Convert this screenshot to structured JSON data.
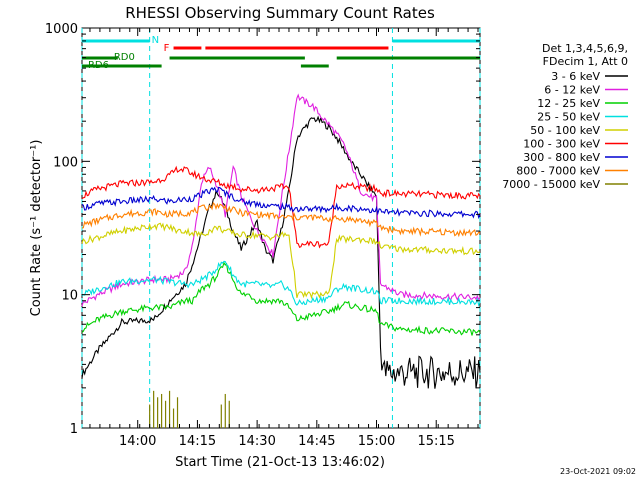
{
  "chart_data": {
    "type": "line",
    "title": "RHESSI Observing Summary Count Rates",
    "xlabel": "Start Time (21-Oct-13 13:46:02)",
    "ylabel": "Count Rate (s⁻¹ detector⁻¹)",
    "ylog": true,
    "ylim": [
      1,
      1000
    ],
    "xlim_minutes": [
      0,
      100
    ],
    "x_ticks": [
      {
        "label": "14:00",
        "min": 14
      },
      {
        "label": "14:15",
        "min": 29
      },
      {
        "label": "14:30",
        "min": 44
      },
      {
        "label": "14:45",
        "min": 59
      },
      {
        "label": "15:00",
        "min": 74
      },
      {
        "label": "15:15",
        "min": 89
      }
    ],
    "y_ticks": [
      {
        "label": "1",
        "value": 1
      },
      {
        "label": "10",
        "value": 10
      },
      {
        "label": "100",
        "value": 100
      },
      {
        "label": "1000",
        "value": 1000
      }
    ],
    "legend_header": [
      "Det 1,3,4,5,6,9,",
      "FDecim 1, Att 0"
    ],
    "legend_position": "top-right",
    "timestamp": "23-Oct-2021 09:02",
    "series": [
      {
        "name": "3 - 6 keV",
        "color": "#000000",
        "points": [
          [
            0,
            2.5
          ],
          [
            4,
            3.8
          ],
          [
            10,
            6.2
          ],
          [
            18,
            6.5
          ],
          [
            22,
            9
          ],
          [
            26,
            12
          ],
          [
            28,
            18
          ],
          [
            30,
            28
          ],
          [
            32,
            45
          ],
          [
            34,
            60
          ],
          [
            36,
            45
          ],
          [
            38,
            30
          ],
          [
            40,
            22
          ],
          [
            42,
            28
          ],
          [
            44,
            35
          ],
          [
            46,
            22
          ],
          [
            48,
            18
          ],
          [
            50,
            30
          ],
          [
            52,
            60
          ],
          [
            54,
            150
          ],
          [
            56,
            180
          ],
          [
            58,
            210
          ],
          [
            60,
            200
          ],
          [
            62,
            180
          ],
          [
            64,
            150
          ],
          [
            66,
            120
          ],
          [
            68,
            95
          ],
          [
            70,
            80
          ],
          [
            72,
            65
          ],
          [
            74,
            55
          ],
          [
            75,
            4
          ],
          [
            76,
            2.6
          ],
          [
            80,
            2.6
          ],
          [
            100,
            2.6
          ]
        ]
      },
      {
        "name": "6 - 12 keV",
        "color": "#e020e0",
        "points": [
          [
            0,
            8.5
          ],
          [
            4,
            10
          ],
          [
            10,
            12
          ],
          [
            18,
            13
          ],
          [
            22,
            13
          ],
          [
            26,
            15
          ],
          [
            28,
            25
          ],
          [
            30,
            70
          ],
          [
            32,
            90
          ],
          [
            34,
            65
          ],
          [
            36,
            40
          ],
          [
            38,
            90
          ],
          [
            40,
            55
          ],
          [
            42,
            40
          ],
          [
            44,
            30
          ],
          [
            46,
            25
          ],
          [
            48,
            20
          ],
          [
            50,
            50
          ],
          [
            52,
            120
          ],
          [
            54,
            310
          ],
          [
            56,
            280
          ],
          [
            58,
            260
          ],
          [
            60,
            220
          ],
          [
            62,
            190
          ],
          [
            64,
            160
          ],
          [
            66,
            130
          ],
          [
            68,
            90
          ],
          [
            70,
            60
          ],
          [
            72,
            55
          ],
          [
            74,
            52
          ],
          [
            75,
            12
          ],
          [
            80,
            10
          ],
          [
            100,
            9.5
          ]
        ]
      },
      {
        "name": "12 - 25 keV",
        "color": "#00d000",
        "points": [
          [
            0,
            5.5
          ],
          [
            4,
            6.5
          ],
          [
            10,
            7.5
          ],
          [
            18,
            8
          ],
          [
            22,
            8
          ],
          [
            26,
            9
          ],
          [
            28,
            9
          ],
          [
            30,
            11
          ],
          [
            32,
            12
          ],
          [
            34,
            14
          ],
          [
            36,
            17
          ],
          [
            38,
            13
          ],
          [
            40,
            10
          ],
          [
            42,
            10
          ],
          [
            44,
            9
          ],
          [
            46,
            9
          ],
          [
            48,
            9
          ],
          [
            50,
            9
          ],
          [
            52,
            8
          ],
          [
            54,
            6.5
          ],
          [
            58,
            7
          ],
          [
            62,
            7.5
          ],
          [
            64,
            8
          ],
          [
            66,
            8.5
          ],
          [
            70,
            8
          ],
          [
            74,
            7.5
          ],
          [
            75,
            6
          ],
          [
            80,
            5.5
          ],
          [
            100,
            5.2
          ]
        ]
      },
      {
        "name": "25 - 50 keV",
        "color": "#00e0e0",
        "points": [
          [
            0,
            10
          ],
          [
            4,
            11
          ],
          [
            10,
            12.5
          ],
          [
            18,
            13
          ],
          [
            22,
            12.5
          ],
          [
            26,
            12
          ],
          [
            28,
            12
          ],
          [
            30,
            13
          ],
          [
            32,
            14
          ],
          [
            34,
            16
          ],
          [
            36,
            18
          ],
          [
            38,
            14
          ],
          [
            40,
            12
          ],
          [
            44,
            12
          ],
          [
            48,
            11.5
          ],
          [
            50,
            12
          ],
          [
            52,
            11
          ],
          [
            54,
            8.5
          ],
          [
            58,
            9
          ],
          [
            62,
            9.5
          ],
          [
            64,
            11
          ],
          [
            66,
            11.5
          ],
          [
            70,
            11
          ],
          [
            74,
            10.5
          ],
          [
            75,
            9
          ],
          [
            80,
            9
          ],
          [
            100,
            8.8
          ]
        ]
      },
      {
        "name": "50 - 100 keV",
        "color": "#d0d000",
        "points": [
          [
            0,
            25
          ],
          [
            4,
            27
          ],
          [
            10,
            30
          ],
          [
            18,
            33
          ],
          [
            22,
            32
          ],
          [
            24,
            30
          ],
          [
            26,
            30
          ],
          [
            28,
            29
          ],
          [
            30,
            28
          ],
          [
            32,
            30
          ],
          [
            34,
            32
          ],
          [
            36,
            30
          ],
          [
            38,
            29
          ],
          [
            40,
            28
          ],
          [
            44,
            28
          ],
          [
            48,
            27
          ],
          [
            50,
            28
          ],
          [
            52,
            28
          ],
          [
            54,
            10
          ],
          [
            58,
            10
          ],
          [
            62,
            10
          ],
          [
            64,
            26
          ],
          [
            66,
            26
          ],
          [
            70,
            26
          ],
          [
            74,
            25
          ],
          [
            75,
            23
          ],
          [
            80,
            22
          ],
          [
            100,
            21
          ]
        ]
      },
      {
        "name": "100 - 300 keV",
        "color": "#ff0000",
        "points": [
          [
            0,
            55
          ],
          [
            4,
            62
          ],
          [
            10,
            68
          ],
          [
            18,
            70
          ],
          [
            22,
            78
          ],
          [
            24,
            88
          ],
          [
            26,
            86
          ],
          [
            28,
            80
          ],
          [
            30,
            76
          ],
          [
            32,
            72
          ],
          [
            34,
            70
          ],
          [
            36,
            66
          ],
          [
            38,
            65
          ],
          [
            40,
            62
          ],
          [
            44,
            61
          ],
          [
            48,
            63
          ],
          [
            50,
            64
          ],
          [
            52,
            65
          ],
          [
            54,
            24
          ],
          [
            58,
            24
          ],
          [
            62,
            24
          ],
          [
            64,
            66
          ],
          [
            66,
            66
          ],
          [
            70,
            64
          ],
          [
            74,
            62
          ],
          [
            75,
            58
          ],
          [
            80,
            57
          ],
          [
            100,
            55
          ]
        ]
      },
      {
        "name": "300 - 800 keV",
        "color": "#0000d0",
        "points": [
          [
            0,
            45
          ],
          [
            4,
            48
          ],
          [
            10,
            50
          ],
          [
            18,
            52
          ],
          [
            22,
            50
          ],
          [
            26,
            52
          ],
          [
            28,
            53
          ],
          [
            30,
            56
          ],
          [
            32,
            60
          ],
          [
            34,
            62
          ],
          [
            36,
            58
          ],
          [
            38,
            54
          ],
          [
            40,
            50
          ],
          [
            44,
            48
          ],
          [
            48,
            46
          ],
          [
            50,
            46
          ],
          [
            52,
            45
          ],
          [
            54,
            44
          ],
          [
            58,
            44
          ],
          [
            62,
            44
          ],
          [
            64,
            45
          ],
          [
            66,
            45
          ],
          [
            70,
            44
          ],
          [
            74,
            43
          ],
          [
            75,
            42
          ],
          [
            80,
            41
          ],
          [
            100,
            40
          ]
        ]
      },
      {
        "name": "800 - 7000 keV",
        "color": "#ff8000",
        "points": [
          [
            0,
            33
          ],
          [
            4,
            36
          ],
          [
            10,
            40
          ],
          [
            18,
            42
          ],
          [
            22,
            40
          ],
          [
            26,
            41
          ],
          [
            28,
            42
          ],
          [
            30,
            44
          ],
          [
            32,
            46
          ],
          [
            34,
            47
          ],
          [
            36,
            45
          ],
          [
            38,
            43
          ],
          [
            40,
            41
          ],
          [
            44,
            40
          ],
          [
            48,
            39
          ],
          [
            50,
            38
          ],
          [
            52,
            38
          ],
          [
            54,
            38
          ],
          [
            58,
            38
          ],
          [
            62,
            37
          ],
          [
            64,
            37
          ],
          [
            66,
            37
          ],
          [
            70,
            36
          ],
          [
            74,
            34
          ],
          [
            75,
            32
          ],
          [
            80,
            30
          ],
          [
            100,
            29
          ]
        ]
      },
      {
        "name": "7000 - 15000 keV",
        "color": "#808000",
        "points": [
          [
            17,
            1.5
          ],
          [
            18,
            1.9
          ],
          [
            19,
            1.7
          ],
          [
            20,
            1.8
          ],
          [
            21,
            1.6
          ],
          [
            22,
            1.9
          ],
          [
            23,
            1.4
          ],
          [
            24,
            1.7
          ],
          [
            35,
            1.5
          ],
          [
            36,
            1.8
          ],
          [
            37,
            1.6
          ]
        ]
      }
    ],
    "flags": [
      {
        "label": "N",
        "color": "#00e0e0",
        "segments": [
          [
            0,
            17
          ],
          [
            78,
            100
          ]
        ]
      },
      {
        "label": "F",
        "color": "#ff0000",
        "segments": [
          [
            23,
            30
          ],
          [
            31,
            77
          ]
        ]
      },
      {
        "label": "RD0",
        "color": "#008000",
        "segments": [
          [
            0,
            9
          ],
          [
            22,
            56
          ],
          [
            64,
            100
          ]
        ]
      },
      {
        "label": "RD6",
        "color": "#008000",
        "segments": [
          [
            0,
            20
          ],
          [
            55,
            62
          ]
        ]
      }
    ],
    "vertical_markers_min": [
      0,
      17,
      78,
      100
    ],
    "vertical_marker_color": "#00e0e0"
  }
}
